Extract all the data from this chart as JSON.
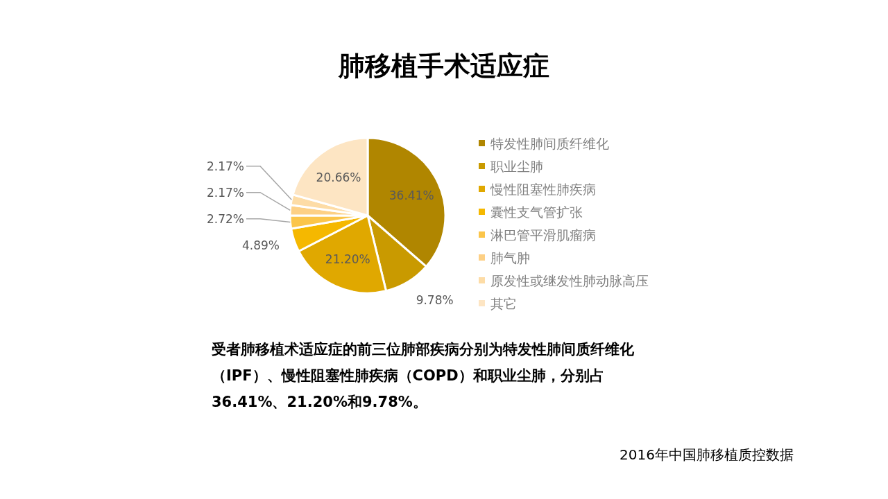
{
  "chart_data": {
    "type": "pie",
    "title": "肺移植手术适应症",
    "categories": [
      "特发性肺间质纤维化",
      "职业尘肺",
      "慢性阻塞性肺疾病",
      "囊性支气管扩张",
      "淋巴管平滑肌瘤病",
      "肺气肿",
      "原发性或继发性肺动脉高压",
      "其它"
    ],
    "values": [
      36.41,
      9.78,
      21.2,
      4.89,
      2.72,
      2.17,
      2.17,
      20.66
    ],
    "value_labels": [
      "36.41%",
      "9.78%",
      "21.20%",
      "4.89%",
      "2.72%",
      "2.17%",
      "2.17%",
      "20.66%"
    ],
    "colors": [
      "#b08600",
      "#c99a00",
      "#e0a800",
      "#f5b800",
      "#fbc54a",
      "#fdd085",
      "#fddca6",
      "#fde5c3"
    ],
    "legend": "right",
    "annotations": [
      "受者肺移植术适应症的前三位肺部疾病分别为特发性肺间质纤维化（IPF）、慢性阻塞性肺疾病（COPD）和职业尘肺，分别占36.41%、21.20%和9.78%。",
      "2016年中国肺移植质控数据"
    ]
  }
}
